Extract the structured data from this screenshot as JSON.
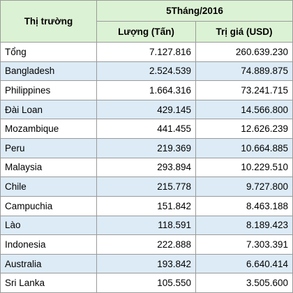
{
  "header": {
    "market": "Thị trường",
    "period": "5Tháng/2016",
    "quantity": "Lượng (Tấn)",
    "value": "Trị giá (USD)"
  },
  "rows": [
    [
      "Tổng",
      "7.127.816",
      "260.639.230"
    ],
    [
      "Bangladesh",
      "2.524.539",
      "74.889.875"
    ],
    [
      "Philippines",
      "1.664.316",
      "73.241.715"
    ],
    [
      "Đài Loan",
      "429.145",
      "14.566.800"
    ],
    [
      "Mozambique",
      "441.455",
      "12.626.239"
    ],
    [
      "Peru",
      "219.369",
      "10.664.885"
    ],
    [
      "Malaysia",
      "293.894",
      "10.229.510"
    ],
    [
      "Chile",
      "215.778",
      "9.727.800"
    ],
    [
      "Campuchia",
      "151.842",
      "8.463.188"
    ],
    [
      "Lào",
      "118.591",
      "8.189.423"
    ],
    [
      "Indonesia",
      "222.888",
      "7.303.391"
    ],
    [
      "Australia",
      "193.842",
      "6.640.414"
    ],
    [
      "Sri Lanka",
      "105.550",
      "3.505.600"
    ]
  ]
}
